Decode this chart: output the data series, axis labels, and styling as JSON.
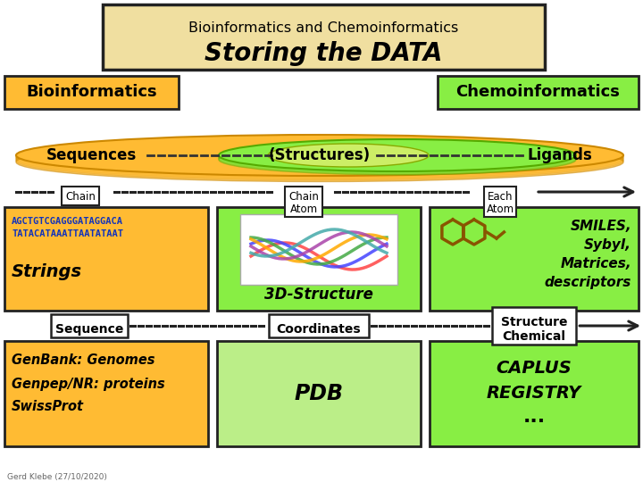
{
  "title_line1": "Bioinformatics and Chemoinformatics",
  "title_line2": "Storing the DATA",
  "bg_color": "#ffffff",
  "title_bg": "#f0dfa0",
  "title_border": "#000000",
  "orange_color": "#ffbb33",
  "orange_dark": "#cc8800",
  "green_light": "#88ee44",
  "green_lighter": "#bbee88",
  "green_mid": "#aadd55",
  "white_color": "#ffffff",
  "text_dark": "#000000",
  "dna_color": "#1133bb",
  "seq_text1": "AGCTGTCGAGGGATAGGACA",
  "seq_text2": "TATACATAAATTAATATAAT",
  "credit": "Gerd Klebe (27/10/2020)",
  "font_comic": "DejaVu Sans"
}
